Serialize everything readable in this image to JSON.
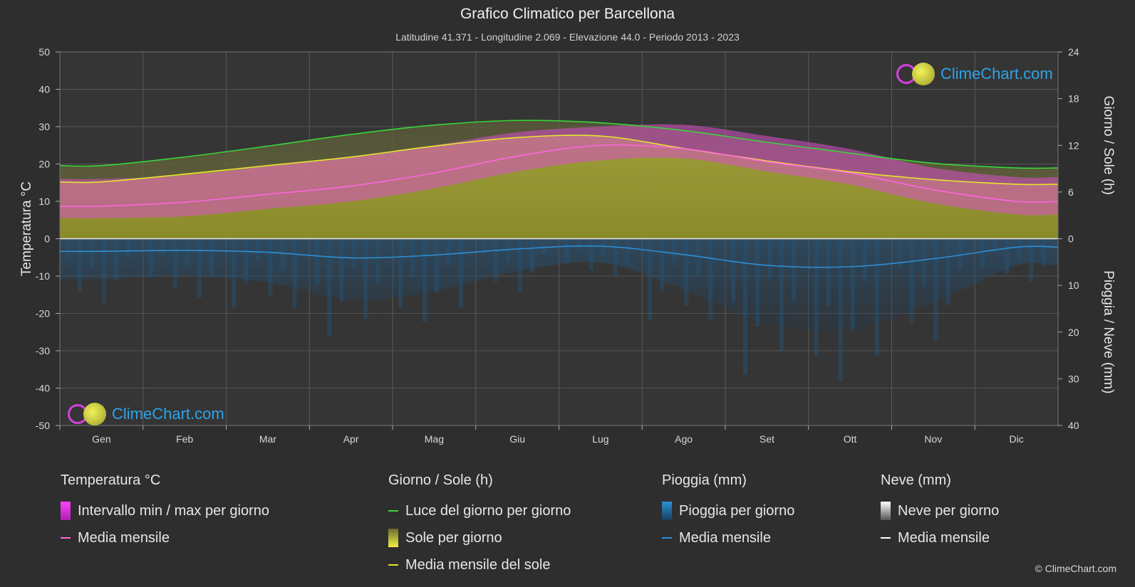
{
  "title": "Grafico Climatico per Barcellona",
  "subtitle": "Latitudine 41.371 - Longitudine 2.069 - Elevazione 44.0 - Periodo 2013 - 2023",
  "logo_text": "ClimeChart.com",
  "copyright": "© ClimeChart.com",
  "legend": {
    "temp": {
      "title": "Temperatura °C",
      "range": "Intervallo min / max per giorno",
      "mean": "Media mensile"
    },
    "sun": {
      "title": "Giorno / Sole (h)",
      "daylight": "Luce del giorno per giorno",
      "sunshine": "Sole per giorno",
      "mean": "Media mensile del sole"
    },
    "rain": {
      "title": "Pioggia (mm)",
      "daily": "Pioggia per giorno",
      "mean": "Media mensile"
    },
    "snow": {
      "title": "Neve (mm)",
      "daily": "Neve per giorno",
      "mean": "Media mensile"
    }
  },
  "chart_data": {
    "type": "area",
    "categories": [
      "Gen",
      "Feb",
      "Mar",
      "Apr",
      "Mag",
      "Giu",
      "Lug",
      "Ago",
      "Set",
      "Ott",
      "Nov",
      "Dic"
    ],
    "y_left": {
      "label": "Temperatura °C",
      "min": -50,
      "max": 50,
      "ticks": [
        50,
        40,
        30,
        20,
        10,
        0,
        -10,
        -20,
        -30,
        -40,
        -50
      ]
    },
    "y_right_top": {
      "label": "Giorno / Sole (h)",
      "min": 0,
      "max": 24,
      "ticks": [
        24,
        18,
        12,
        6,
        0
      ]
    },
    "y_right_bottom": {
      "label": "Pioggia / Neve (mm)",
      "min": 0,
      "max": 40,
      "ticks": [
        0,
        10,
        20,
        30,
        40
      ]
    },
    "grid": true,
    "series": [
      {
        "name": "Luce del giorno per giorno",
        "unit": "h",
        "color": "#39d639",
        "values": [
          9.4,
          10.5,
          11.9,
          13.4,
          14.6,
          15.2,
          14.9,
          13.9,
          12.4,
          11.0,
          9.7,
          9.1
        ]
      },
      {
        "name": "Media mensile del sole",
        "unit": "h",
        "color": "#e6e62e",
        "values": [
          7.3,
          8.3,
          9.4,
          10.5,
          11.9,
          13.0,
          13.2,
          11.6,
          10.0,
          8.6,
          7.6,
          7.0
        ]
      },
      {
        "name": "Media mensile",
        "unit": "°C",
        "color": "#ff66dd",
        "values": [
          8.7,
          9.8,
          11.9,
          14.1,
          17.6,
          22.1,
          25.0,
          24.1,
          20.6,
          17.6,
          13.1,
          10.0
        ]
      },
      {
        "name": "Media mensile",
        "unit": "mm",
        "color": "#2c8fd6",
        "values": [
          2.7,
          2.5,
          2.9,
          4.1,
          3.5,
          2.2,
          1.6,
          3.4,
          5.7,
          6.0,
          4.3,
          1.8
        ]
      }
    ],
    "temp_min": [
      5.5,
      6.0,
      8.0,
      10.0,
      13.5,
      18.0,
      21.0,
      21.5,
      18.0,
      14.5,
      9.5,
      6.5
    ],
    "temp_max": [
      16.0,
      17.0,
      19.5,
      22.0,
      25.0,
      28.5,
      30.0,
      30.5,
      27.5,
      24.0,
      19.0,
      16.5
    ]
  }
}
